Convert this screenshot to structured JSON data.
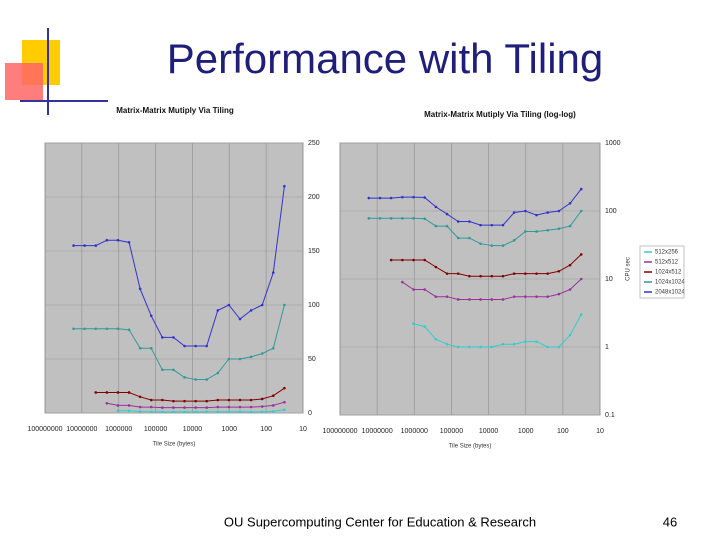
{
  "slide": {
    "title": "Performance with Tiling",
    "footer": "OU Supercomputing Center for Education & Research",
    "page": "46"
  },
  "chart_data": [
    {
      "type": "line",
      "title": "Matrix-Matrix Mutiply Via Tiling",
      "xlabel": "Tile Size (bytes)",
      "xscale": "log",
      "xlim": [
        100000000,
        10
      ],
      "xticks": [
        100000000,
        10000000,
        1000000,
        100000,
        10000,
        1000,
        100,
        10
      ],
      "ylim": [
        0,
        250
      ],
      "yticks": [
        0,
        50,
        100,
        150,
        200,
        250
      ],
      "grid": true,
      "x": [
        16777216,
        8388608,
        4194304,
        2097152,
        1048576,
        524288,
        262144,
        131072,
        65536,
        32768,
        16384,
        8192,
        4096,
        2048,
        1024,
        512,
        256,
        128,
        64,
        32
      ],
      "series": [
        {
          "color": "#33cccc",
          "values": [
            null,
            null,
            null,
            null,
            2.2,
            2.0,
            1.3,
            1.1,
            1,
            1,
            1,
            1,
            1.1,
            1.1,
            1.2,
            1.2,
            1,
            1,
            1.5,
            3
          ]
        },
        {
          "color": "#993399",
          "values": [
            null,
            null,
            null,
            9,
            7,
            7,
            5.5,
            5.5,
            5,
            5,
            5,
            5,
            5,
            5.5,
            5.5,
            5.5,
            5.5,
            6,
            7,
            10
          ]
        },
        {
          "color": "#800000",
          "values": [
            null,
            null,
            19,
            19,
            19,
            19,
            15,
            12,
            12,
            11,
            11,
            11,
            11,
            12,
            12,
            12,
            12,
            13,
            16,
            23
          ]
        },
        {
          "color": "#339999",
          "values": [
            78,
            78,
            78,
            78,
            78,
            77,
            60,
            60,
            40,
            40,
            33,
            31,
            31,
            37,
            50,
            50,
            52,
            55,
            60,
            100
          ]
        },
        {
          "color": "#3333cc",
          "values": [
            155,
            155,
            155,
            160,
            160,
            158,
            115,
            90,
            70,
            70,
            62,
            62,
            62,
            95,
            100,
            87,
            95,
            100,
            130,
            210
          ]
        }
      ]
    },
    {
      "type": "line",
      "title": "Matrix-Matrix Mutiply Via Tiling (log-log)",
      "xlabel": "Tile Size (bytes)",
      "ylabel": "CPU sec",
      "xscale": "log",
      "xlim": [
        100000000,
        10
      ],
      "xticks": [
        100000000,
        10000000,
        1000000,
        100000,
        10000,
        1000,
        100,
        10
      ],
      "yscale": "log",
      "ylim": [
        0.1,
        1000
      ],
      "yticks": [
        0.1,
        1,
        10,
        100,
        1000
      ],
      "grid": true,
      "legend": "right",
      "x": [
        16777216,
        8388608,
        4194304,
        2097152,
        1048576,
        524288,
        262144,
        131072,
        65536,
        32768,
        16384,
        8192,
        4096,
        2048,
        1024,
        512,
        256,
        128,
        64,
        32
      ],
      "series": [
        {
          "name": "512x256",
          "color": "#33cccc",
          "values": [
            null,
            null,
            null,
            null,
            2.2,
            2.0,
            1.3,
            1.1,
            1,
            1,
            1,
            1,
            1.1,
            1.1,
            1.2,
            1.2,
            1,
            1,
            1.5,
            3
          ]
        },
        {
          "name": "512x512",
          "color": "#993399",
          "values": [
            null,
            null,
            null,
            9,
            7,
            7,
            5.5,
            5.5,
            5,
            5,
            5,
            5,
            5,
            5.5,
            5.5,
            5.5,
            5.5,
            6,
            7,
            10
          ]
        },
        {
          "name": "1024x512",
          "color": "#800000",
          "values": [
            null,
            null,
            19,
            19,
            19,
            19,
            15,
            12,
            12,
            11,
            11,
            11,
            11,
            12,
            12,
            12,
            12,
            13,
            16,
            23
          ]
        },
        {
          "name": "1024x1024",
          "color": "#339999",
          "values": [
            78,
            78,
            78,
            78,
            78,
            77,
            60,
            60,
            40,
            40,
            33,
            31,
            31,
            37,
            50,
            50,
            52,
            55,
            60,
            100
          ]
        },
        {
          "name": "2048x1024",
          "color": "#3333cc",
          "values": [
            155,
            155,
            155,
            160,
            160,
            158,
            115,
            90,
            70,
            70,
            62,
            62,
            62,
            95,
            100,
            87,
            95,
            100,
            130,
            210
          ]
        }
      ]
    }
  ]
}
